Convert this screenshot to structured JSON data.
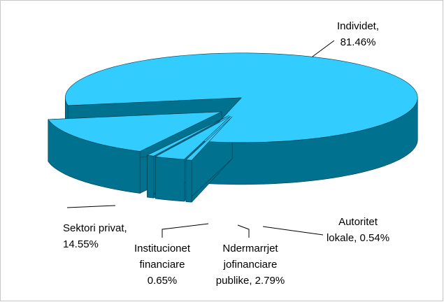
{
  "chart_data": {
    "type": "pie3d",
    "values": [
      81.46,
      0.54,
      2.79,
      0.65,
      14.55
    ],
    "value_labels": [
      [
        "Individet,",
        "81.46%"
      ],
      [
        "Autoritet",
        "lokale, 0.54%"
      ],
      [
        "Ndermarrjet",
        "jofinanciare",
        "publike, 2.79%"
      ],
      [
        "Institucionet",
        "financiare",
        "0.65%"
      ],
      [
        "Sektori privat,",
        "14.55%"
      ]
    ],
    "top_color": "#33ccff",
    "side_color": "#00718f"
  }
}
